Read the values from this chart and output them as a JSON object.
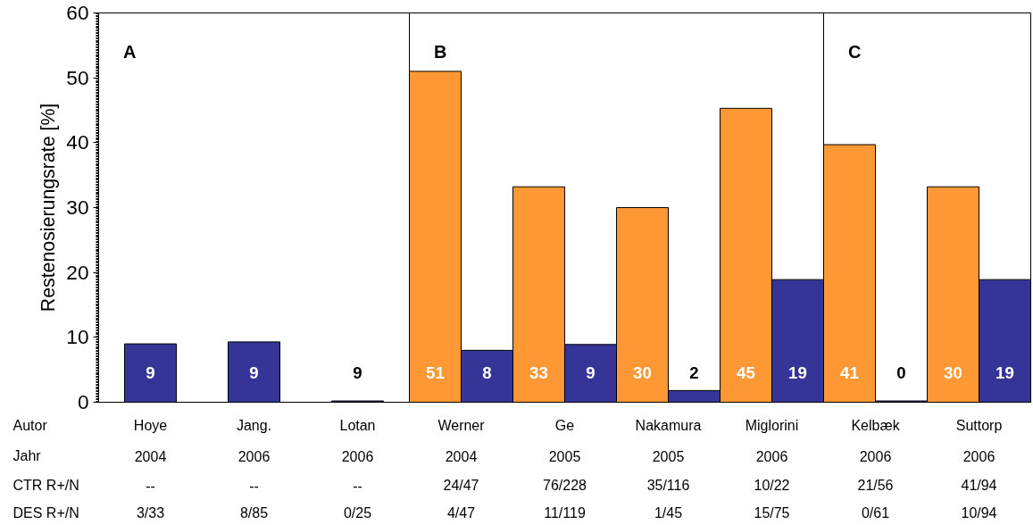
{
  "chart_data": {
    "type": "bar",
    "ylabel": "Restenosierungsrate [%]",
    "categories": [
      "Hoye",
      "Jang.",
      "Lotan",
      "Werner",
      "Ge",
      "Nakamura",
      "Miglorini",
      "Kelbæk",
      "Suttorp"
    ],
    "series": [
      {
        "color": "#fd9834",
        "values": [
          null,
          null,
          null,
          51.0,
          33.2,
          30.0,
          45.3,
          39.7,
          33.2
        ],
        "value_labels": [
          null,
          null,
          null,
          "51",
          "33",
          "30",
          "45",
          null,
          null
        ]
      },
      {
        "color": "#353598",
        "values": [
          9.0,
          9.3,
          0.2,
          8.0,
          8.9,
          1.8,
          18.9,
          0.2,
          18.9
        ],
        "value_labels": [
          "9",
          "9",
          null,
          "8",
          "9",
          "2",
          "19",
          "0",
          "19"
        ]
      }
    ],
    "ylim": [
      0,
      60
    ],
    "yticks": [
      0,
      10,
      20,
      30,
      40,
      50,
      60
    ],
    "annotations": [
      "A",
      "B",
      "C",
      "Autor",
      "Jahr",
      "CTR R+/N",
      "DES R+/N",
      "2004",
      "2006",
      "2006",
      "2004",
      "2005",
      "2005",
      "2006",
      "2006",
      "2006",
      "--",
      "--",
      "--",
      "24/47",
      "76/228",
      "35/116",
      "10/22",
      "21/56",
      "41/94",
      "3/33",
      "8/85",
      "0/25",
      "4/47",
      "11/119",
      "1/45",
      "15/75",
      "0/61",
      "10/94",
      "9",
      "41",
      "30"
    ],
    "grid": false
  }
}
